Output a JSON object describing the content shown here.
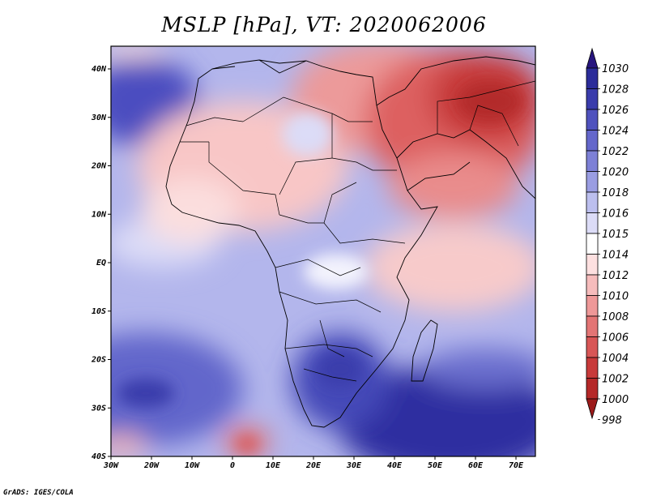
{
  "title": "MSLP [hPa], VT: 2020062006",
  "credit": "GrADS: IGES/COLA",
  "y_axis_labels": [
    "40N",
    "30N",
    "20N",
    "10N",
    "EQ",
    "10S",
    "20S",
    "30S",
    "40S"
  ],
  "x_axis_labels": [
    "30W",
    "20W",
    "10W",
    "0",
    "10E",
    "20E",
    "30E",
    "40E",
    "50E",
    "60E",
    "70E"
  ],
  "colorbar": {
    "labels": [
      "1030",
      "1028",
      "1026",
      "1024",
      "1022",
      "1020",
      "1018",
      "1016",
      "1015",
      "1014",
      "1012",
      "1010",
      "1008",
      "1006",
      "1004",
      "1002",
      "1000",
      "998"
    ],
    "colors": [
      "#27157e",
      "#2b2c9a",
      "#3a3cac",
      "#4f52be",
      "#6467cb",
      "#7d80d6",
      "#9a9de2",
      "#bcbfee",
      "#dcdcf7",
      "#ffffff",
      "#fde0e0",
      "#f6bcbc",
      "#ee9898",
      "#e37575",
      "#d85656",
      "#c83a3a",
      "#b52828",
      "#9c1a1a"
    ]
  }
}
